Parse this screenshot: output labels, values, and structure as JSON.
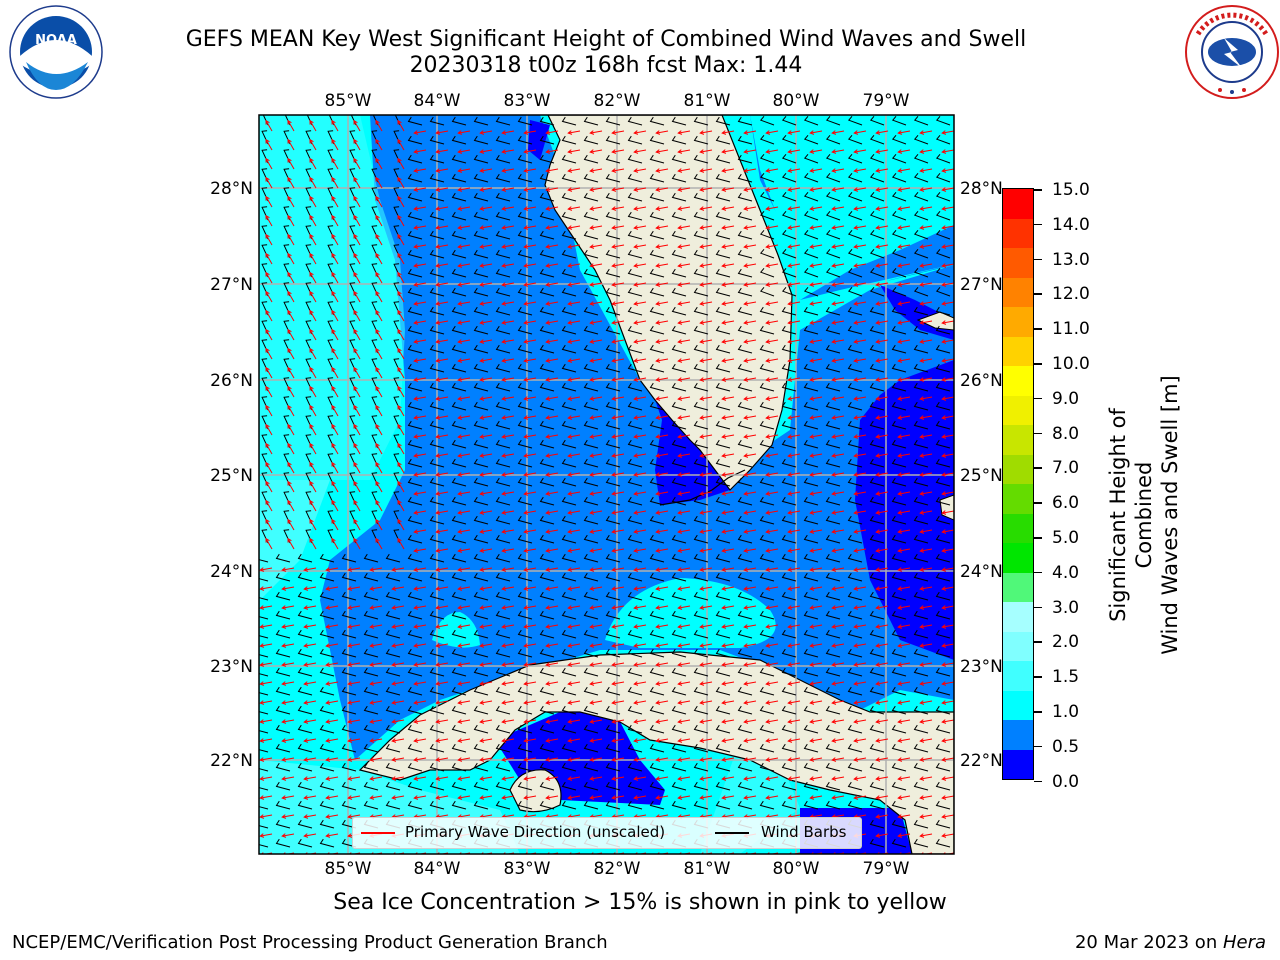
{
  "header": {
    "title_line1": "GEFS MEAN Key West Significant Height of Combined Wind Waves and Swell",
    "title_line2": "20230318 t00z 168h fcst   Max: 1.44"
  },
  "logos": {
    "left": "NOAA",
    "right": "NATIONAL WEATHER SERVICE"
  },
  "axes": {
    "lon_labels": [
      "85°W",
      "84°W",
      "83°W",
      "82°W",
      "81°W",
      "80°W",
      "79°W"
    ],
    "lat_labels": [
      "28°N",
      "27°N",
      "26°N",
      "25°N",
      "24°N",
      "23°N",
      "22°N"
    ]
  },
  "colorbar": {
    "title_line1": "Significant Height of Combined",
    "title_line2": "Wind Waves and Swell [m]",
    "tick_labels": [
      "15.0",
      "14.0",
      "13.0",
      "12.0",
      "11.0",
      "10.0",
      "9.0",
      "8.0",
      "7.0",
      "6.0",
      "5.0",
      "4.0",
      "3.0",
      "2.0",
      "1.5",
      "1.0",
      "0.5",
      "0.0"
    ],
    "colors": [
      "#0000ff",
      "#0080ff",
      "#00ffff",
      "#40ffff",
      "#80ffff",
      "#a6ffff",
      "#50f879",
      "#00e600",
      "#28dc00",
      "#64dc00",
      "#a0dc00",
      "#c8e600",
      "#f0f000",
      "#ffff00",
      "#ffd200",
      "#ffaa00",
      "#ff8200",
      "#ff5a00",
      "#ff3200",
      "#ff0000"
    ]
  },
  "legend": {
    "wave_label": "Primary Wave Direction (unscaled)",
    "wind_label": "Wind Barbs",
    "wave_color": "#ff0000",
    "wind_color": "#000000"
  },
  "map_colors": {
    "land": "#efeedc",
    "sea_0_05": "#0000ff",
    "sea_05_10": "#0080ff",
    "sea_10_15": "#00ffff",
    "sea_15_20": "#40ffff"
  },
  "caption": "Sea Ice Concentration > 15% is shown in pink to yellow",
  "footer": {
    "left": "NCEP/EMC/Verification Post Processing Product Generation Branch",
    "right_date": "20 Mar 2023 on ",
    "right_host": "Hera"
  }
}
